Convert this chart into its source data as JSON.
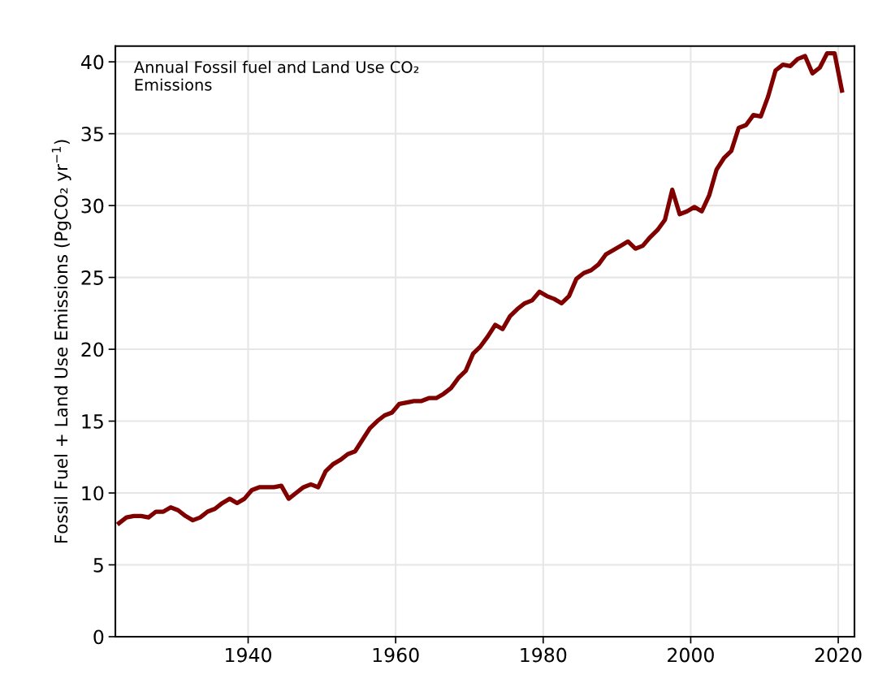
{
  "chart_data": {
    "type": "line",
    "ylabel": "Fossil Fuel + Land Use Emissions (PgCO₂ yr$^{−1}$)",
    "annotations": [
      "Annual Fossil fuel and Land Use CO₂\nEmissions"
    ],
    "x": [
      1922.5,
      1923.5,
      1924.5,
      1925.5,
      1926.5,
      1927.5,
      1928.5,
      1929.5,
      1930.5,
      1931.5,
      1932.5,
      1933.5,
      1934.5,
      1935.5,
      1936.5,
      1937.5,
      1938.5,
      1939.5,
      1940.5,
      1941.5,
      1942.5,
      1943.5,
      1944.5,
      1945.5,
      1946.5,
      1947.5,
      1948.5,
      1949.5,
      1950.5,
      1951.5,
      1952.5,
      1953.5,
      1954.5,
      1955.5,
      1956.5,
      1957.5,
      1958.5,
      1959.5,
      1960.5,
      1961.5,
      1962.5,
      1963.5,
      1964.5,
      1965.5,
      1966.5,
      1967.5,
      1968.5,
      1969.5,
      1970.5,
      1971.5,
      1972.5,
      1973.5,
      1974.5,
      1975.5,
      1976.5,
      1977.5,
      1978.5,
      1979.5,
      1980.5,
      1981.5,
      1982.5,
      1983.5,
      1984.5,
      1985.5,
      1986.5,
      1987.5,
      1988.5,
      1989.5,
      1990.5,
      1991.5,
      1992.5,
      1993.5,
      1994.5,
      1995.5,
      1996.5,
      1997.5,
      1998.5,
      1999.5,
      2000.5,
      2001.5,
      2002.5,
      2003.5,
      2004.5,
      2005.5,
      2006.5,
      2007.5,
      2008.5,
      2009.5,
      2010.5,
      2011.5,
      2012.5,
      2013.5,
      2014.5,
      2015.5,
      2016.5,
      2017.5,
      2018.5,
      2019.5,
      2020.5
    ],
    "series": [
      {
        "color": "#800000",
        "values": [
          7.9,
          8.3,
          8.4,
          8.4,
          8.3,
          8.7,
          8.7,
          9.0,
          8.8,
          8.4,
          8.1,
          8.3,
          8.7,
          8.9,
          9.3,
          9.6,
          9.3,
          9.6,
          10.2,
          10.4,
          10.4,
          10.4,
          10.5,
          9.6,
          10.0,
          10.4,
          10.6,
          10.4,
          11.5,
          12.0,
          12.3,
          12.7,
          12.9,
          13.7,
          14.5,
          15.0,
          15.4,
          15.6,
          16.2,
          16.3,
          16.4,
          16.4,
          16.6,
          16.6,
          16.9,
          17.3,
          18.0,
          18.5,
          19.7,
          20.2,
          20.9,
          21.7,
          21.4,
          22.3,
          22.8,
          23.2,
          23.4,
          24.0,
          23.7,
          23.5,
          23.2,
          23.7,
          24.9,
          25.3,
          25.5,
          25.9,
          26.6,
          26.9,
          27.2,
          27.5,
          27.0,
          27.2,
          27.8,
          28.3,
          29.0,
          31.1,
          29.4,
          29.6,
          29.9,
          29.6,
          30.7,
          32.5,
          33.3,
          33.8,
          35.4,
          35.6,
          36.3,
          36.2,
          37.6,
          39.4,
          39.8,
          39.7,
          40.2,
          40.4,
          39.2,
          39.6,
          40.6,
          40.6,
          38.0
        ]
      }
    ],
    "xlim": [
      1922,
      2022.2
    ],
    "xticks": [
      1940,
      1960,
      1980,
      2000,
      2020
    ],
    "ylim": [
      0,
      41.1
    ],
    "yticks": [
      0,
      5,
      10,
      15,
      20,
      25,
      30,
      35,
      40
    ],
    "grid": true,
    "legend": false,
    "marker": "none",
    "line_style": "solid"
  }
}
